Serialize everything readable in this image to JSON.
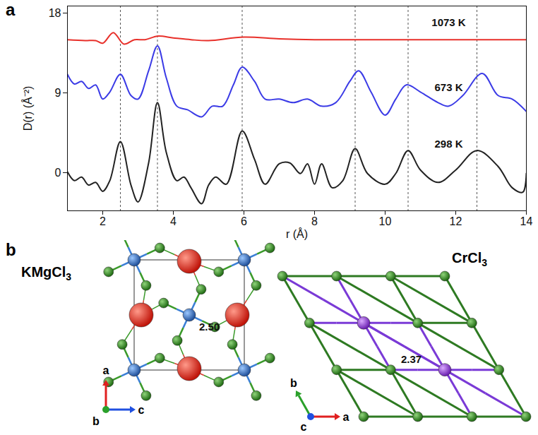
{
  "chart_data": {
    "type": "line",
    "panel_label": "a",
    "xlabel": "r (Å)",
    "ylabel": "D(r) (Å⁻²)",
    "xlim": [
      1,
      14
    ],
    "ylim": [
      -4.3,
      18.8
    ],
    "xticks": [
      2,
      4,
      6,
      8,
      10,
      12,
      14
    ],
    "yticks": [
      0,
      9,
      18
    ],
    "reference_lines": [
      2.5,
      3.55,
      5.95,
      9.15,
      10.65,
      12.6
    ],
    "series": [
      {
        "name": "1073 K",
        "color": "#e8302a",
        "label_x": 11.8,
        "label_y": 16.9,
        "x": [
          1.0,
          1.5,
          1.8,
          2.0,
          2.3,
          2.6,
          2.9,
          3.2,
          3.55,
          4.0,
          4.5,
          5.0,
          6.0,
          7.0,
          8.0,
          10.0,
          12.0,
          14.0
        ],
        "values": [
          15.0,
          14.9,
          14.9,
          14.6,
          15.8,
          14.5,
          15.0,
          15.0,
          15.4,
          15.2,
          15.0,
          14.9,
          15.3,
          15.1,
          15.0,
          15.0,
          15.0,
          15.0
        ]
      },
      {
        "name": "673 K",
        "color": "#3b3be6",
        "label_x": 11.8,
        "label_y": 9.6,
        "x": [
          1.0,
          1.2,
          1.4,
          1.6,
          1.8,
          2.0,
          2.2,
          2.5,
          2.8,
          3.0,
          3.3,
          3.55,
          3.8,
          4.1,
          4.4,
          4.8,
          5.1,
          5.4,
          5.7,
          5.95,
          6.3,
          6.6,
          7.0,
          7.4,
          7.8,
          8.2,
          8.6,
          9.0,
          9.25,
          9.6,
          10.0,
          10.3,
          10.6,
          11.0,
          11.5,
          11.8,
          12.2,
          12.75,
          13.2,
          13.6,
          14.0
        ],
        "values": [
          11.1,
          10.0,
          10.3,
          9.5,
          9.9,
          8.3,
          9.1,
          11.1,
          8.7,
          8.3,
          11.5,
          14.3,
          10.7,
          7.5,
          7.1,
          6.3,
          7.5,
          7.5,
          9.9,
          11.9,
          10.3,
          8.3,
          8.3,
          7.9,
          8.3,
          7.5,
          7.9,
          10.3,
          11.5,
          9.1,
          6.5,
          8.3,
          9.9,
          9.1,
          7.9,
          7.5,
          8.7,
          11.2,
          8.7,
          8.3,
          6.9
        ]
      },
      {
        "name": "298 K",
        "color": "#222222",
        "label_x": 11.8,
        "label_y": 3.2,
        "x": [
          1.0,
          1.2,
          1.4,
          1.6,
          1.8,
          2.0,
          2.2,
          2.5,
          2.8,
          3.0,
          3.3,
          3.55,
          3.8,
          4.1,
          4.3,
          4.5,
          4.8,
          5.0,
          5.2,
          5.5,
          5.95,
          6.3,
          6.6,
          7.0,
          7.3,
          7.6,
          7.8,
          8.0,
          8.2,
          8.5,
          8.8,
          9.15,
          9.5,
          10.0,
          10.3,
          10.65,
          11.0,
          11.5,
          12.0,
          12.6,
          13.2,
          13.6,
          13.9,
          14.0
        ],
        "values": [
          0.1,
          -0.9,
          -0.5,
          -1.4,
          -1.1,
          -2.1,
          -0.9,
          3.5,
          -1.4,
          -3.3,
          1.1,
          7.9,
          2.3,
          -0.9,
          -0.5,
          -1.7,
          -3.5,
          -1.4,
          -0.5,
          -1.3,
          4.7,
          1.5,
          -1.3,
          1.0,
          1.1,
          -0.1,
          1.0,
          -1.3,
          1.0,
          -1.7,
          -0.9,
          2.7,
          -0.1,
          -1.3,
          -0.1,
          2.5,
          0.3,
          -1.1,
          0.3,
          2.5,
          0.7,
          -1.7,
          -2.2,
          -0.1
        ]
      }
    ]
  },
  "diagram": {
    "panel_label": "b",
    "structures": [
      {
        "name": "KMgCl3",
        "bond_length_label": "2.50",
        "axes": [
          "a",
          "b",
          "c"
        ]
      },
      {
        "name": "CrCl3",
        "bond_length_label": "2.37",
        "axes": [
          "a",
          "b",
          "c"
        ]
      }
    ]
  }
}
